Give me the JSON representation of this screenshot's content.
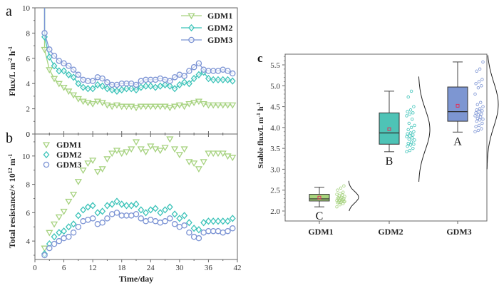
{
  "colors": {
    "GDM1": "#a6d27f",
    "GDM2": "#3cc3b9",
    "GDM3": "#7b93d4",
    "GDM1_box": "#a8d47c",
    "GDM2_box": "#4ec3b6",
    "GDM3_box": "#7d96d2",
    "mean_marker": "#e0305a",
    "axis": "#555555"
  },
  "chart_data": [
    {
      "panel": "a",
      "type": "line",
      "title": "",
      "xlabel": "",
      "ylabel": "Flux/L m⁻² h⁻¹",
      "ylabel_parts": {
        "main": "Flux/L m",
        "sup1": "-2",
        "mid": " h",
        "sup2": "-1"
      },
      "xlim": [
        0,
        42
      ],
      "ylim": [
        0,
        10
      ],
      "yticks": [
        0,
        2,
        4,
        6,
        8,
        10
      ],
      "xticks": [
        0,
        6,
        12,
        18,
        24,
        30,
        36,
        42
      ],
      "legend": {
        "position": "top-right",
        "entries": [
          "GDM1",
          "GDM2",
          "GDM3"
        ]
      },
      "x": [
        2,
        3,
        4,
        5,
        6,
        7,
        8,
        9,
        10,
        11,
        12,
        13,
        14,
        15,
        16,
        17,
        18,
        19,
        20,
        21,
        22,
        23,
        24,
        25,
        26,
        27,
        28,
        29,
        30,
        31,
        32,
        33,
        34,
        35,
        36,
        37,
        38,
        39,
        40,
        41
      ],
      "start_point": {
        "x": 2,
        "y": 10
      },
      "series": [
        {
          "name": "GDM1",
          "marker": "triangle-down",
          "values": [
            6.7,
            5.1,
            4.4,
            4.0,
            3.7,
            3.4,
            3.1,
            2.8,
            2.6,
            2.5,
            2.4,
            2.6,
            2.5,
            2.3,
            2.2,
            2.3,
            2.2,
            2.2,
            2.2,
            2.1,
            2.2,
            2.2,
            2.2,
            2.2,
            2.2,
            2.2,
            2.1,
            2.2,
            2.3,
            2.2,
            2.4,
            2.5,
            2.6,
            2.4,
            2.3,
            2.3,
            2.3,
            2.3,
            2.3,
            2.3
          ]
        },
        {
          "name": "GDM2",
          "marker": "diamond",
          "values": [
            7.7,
            6.1,
            5.4,
            5.0,
            5.0,
            4.7,
            4.5,
            4.0,
            3.7,
            3.6,
            3.6,
            3.9,
            3.8,
            3.6,
            3.5,
            3.4,
            3.5,
            3.6,
            3.6,
            3.5,
            3.7,
            3.8,
            3.8,
            3.7,
            3.8,
            3.9,
            3.8,
            3.6,
            3.9,
            4.1,
            4.0,
            4.4,
            4.7,
            4.9,
            4.4,
            4.3,
            4.3,
            4.3,
            4.3,
            4.2
          ]
        },
        {
          "name": "GDM3",
          "marker": "circle",
          "values": [
            8.0,
            6.7,
            6.2,
            5.8,
            5.6,
            5.4,
            5.1,
            4.7,
            4.3,
            4.2,
            4.2,
            4.5,
            4.4,
            4.1,
            3.9,
            3.9,
            4.0,
            4.0,
            4.0,
            3.9,
            4.2,
            4.3,
            4.3,
            4.3,
            4.4,
            4.3,
            4.2,
            4.5,
            4.7,
            4.6,
            5.0,
            5.3,
            5.6,
            5.1,
            5.0,
            5.0,
            5.0,
            5.1,
            5.0,
            4.8
          ]
        }
      ]
    },
    {
      "panel": "b",
      "type": "scatter",
      "title": "",
      "xlabel": "Time/day",
      "ylabel_parts": {
        "main": "Total resistance/× 10",
        "sup1": "12",
        "mid": " m",
        "sup2": "-1"
      },
      "xlim": [
        0,
        42
      ],
      "ylim": [
        2.6,
        10.8
      ],
      "yticks": [
        4,
        6,
        8,
        10
      ],
      "top_tick_label": "0",
      "xticks": [
        0,
        6,
        12,
        18,
        24,
        30,
        36,
        42
      ],
      "legend": {
        "position": "top-left",
        "entries": [
          "GDM1",
          "GDM2",
          "GDM3"
        ]
      },
      "x": [
        2,
        3,
        4,
        5,
        6,
        7,
        8,
        9,
        10,
        11,
        12,
        13,
        14,
        15,
        16,
        17,
        18,
        19,
        20,
        21,
        22,
        23,
        24,
        25,
        26,
        27,
        28,
        29,
        30,
        31,
        32,
        33,
        34,
        35,
        36,
        37,
        38,
        39,
        40,
        41
      ],
      "series": [
        {
          "name": "GDM1",
          "marker": "triangle-down",
          "values": [
            3.5,
            4.6,
            5.2,
            5.7,
            6.1,
            6.8,
            7.3,
            8.2,
            9.0,
            9.5,
            9.7,
            8.9,
            9.1,
            9.8,
            10.2,
            10.4,
            10.2,
            10.3,
            10.5,
            11.0,
            10.5,
            10.3,
            10.7,
            10.5,
            10.4,
            10.6,
            11.2,
            10.5,
            10.1,
            10.5,
            9.6,
            9.5,
            9.1,
            9.6,
            10.2,
            10.2,
            10.2,
            10.2,
            10.0,
            9.9
          ]
        },
        {
          "name": "GDM2",
          "marker": "diamond",
          "values": [
            3.1,
            3.8,
            4.3,
            4.6,
            4.7,
            5.0,
            5.2,
            5.8,
            6.2,
            6.4,
            6.5,
            6.0,
            6.1,
            6.5,
            6.6,
            6.8,
            6.6,
            6.5,
            6.5,
            6.6,
            6.2,
            6.0,
            6.2,
            6.3,
            6.0,
            6.2,
            6.4,
            5.9,
            5.6,
            5.8,
            5.3,
            4.9,
            4.8,
            5.3,
            5.4,
            5.4,
            5.4,
            5.4,
            5.4,
            5.6
          ]
        },
        {
          "name": "GDM3",
          "marker": "circle",
          "values": [
            3.0,
            3.5,
            3.8,
            4.0,
            4.2,
            4.3,
            4.6,
            5.0,
            5.4,
            5.5,
            5.6,
            5.2,
            5.3,
            5.6,
            5.9,
            6.0,
            5.8,
            5.8,
            5.8,
            5.9,
            5.6,
            5.4,
            5.5,
            5.4,
            5.3,
            5.4,
            5.6,
            5.2,
            5.0,
            5.1,
            4.6,
            4.3,
            4.2,
            4.6,
            4.7,
            4.7,
            4.7,
            4.6,
            4.7,
            4.9
          ]
        }
      ]
    },
    {
      "panel": "c",
      "type": "box",
      "title": "",
      "xlabel": "",
      "ylabel_parts": {
        "main": "Stable flux/L m",
        "sup1": "-1",
        "mid": " h",
        "sup2": "-1"
      },
      "ylim": [
        1.85,
        5.75
      ],
      "yticks": [
        2.0,
        2.5,
        3.0,
        3.5,
        4.0,
        4.5,
        5.0,
        5.5
      ],
      "ytick_labels": [
        "2.0",
        "2.5",
        "3.0",
        "3.5",
        "4.0",
        "4.5",
        "5.0",
        "5.5"
      ],
      "categories": [
        "GDM1",
        "GDM2",
        "GDM3"
      ],
      "boxes": [
        {
          "name": "GDM1",
          "whisker_low": 2.1,
          "q1": 2.24,
          "median": 2.29,
          "q3": 2.4,
          "whisker_high": 2.57,
          "mean": 2.32,
          "significance": "C",
          "dist_range": [
            2.0,
            2.72
          ],
          "dist_peak": 2.33
        },
        {
          "name": "GDM2",
          "whisker_low": 3.42,
          "q1": 3.6,
          "median": 3.87,
          "q3": 4.35,
          "whisker_high": 4.87,
          "mean": 3.96,
          "significance": "B",
          "dist_range": [
            2.7,
            5.22
          ],
          "dist_peak": 3.95
        },
        {
          "name": "GDM3",
          "whisker_low": 3.89,
          "q1": 4.15,
          "median": 4.38,
          "q3": 4.97,
          "whisker_high": 5.57,
          "mean": 4.52,
          "significance": "A",
          "dist_range": [
            3.0,
            5.75
          ],
          "dist_peak": 4.55
        }
      ],
      "points": {
        "GDM1": [
          2.1,
          2.15,
          2.18,
          2.2,
          2.2,
          2.22,
          2.22,
          2.22,
          2.23,
          2.25,
          2.25,
          2.25,
          2.26,
          2.28,
          2.3,
          2.3,
          2.3,
          2.32,
          2.33,
          2.35,
          2.36,
          2.38,
          2.4,
          2.42,
          2.45,
          2.5,
          2.55,
          2.6
        ],
        "GDM2": [
          3.42,
          3.45,
          3.5,
          3.55,
          3.58,
          3.6,
          3.62,
          3.65,
          3.7,
          3.72,
          3.75,
          3.78,
          3.8,
          3.82,
          3.85,
          3.87,
          3.9,
          3.95,
          4.0,
          4.05,
          4.1,
          4.2,
          4.28,
          4.32,
          4.35,
          4.38,
          4.42,
          4.5,
          4.73,
          4.87
        ],
        "GDM3": [
          3.9,
          3.93,
          3.97,
          4.02,
          4.05,
          4.1,
          4.15,
          4.18,
          4.2,
          4.22,
          4.25,
          4.28,
          4.3,
          4.32,
          4.35,
          4.38,
          4.4,
          4.42,
          4.45,
          4.5,
          4.55,
          4.6,
          4.8,
          4.95,
          5.0,
          5.05,
          5.1,
          5.15,
          5.35,
          5.4,
          5.57
        ]
      }
    }
  ],
  "labels": {
    "panel_a": "a",
    "panel_b": "b",
    "panel_c": "c",
    "time_axis": "Time/day"
  }
}
